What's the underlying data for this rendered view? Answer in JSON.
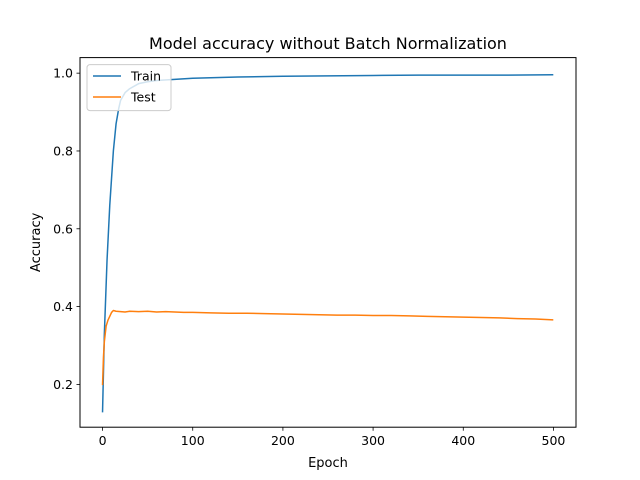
{
  "chart_data": {
    "type": "line",
    "title": "Model accuracy without Batch Normalization",
    "xlabel": "Epoch",
    "ylabel": "Accuracy",
    "xlim": [
      -25,
      525
    ],
    "ylim": [
      0.09,
      1.04
    ],
    "xticks": [
      0,
      100,
      200,
      300,
      400,
      500
    ],
    "yticks": [
      0.2,
      0.4,
      0.6,
      0.8,
      1.0
    ],
    "ytick_labels": [
      "0.2",
      "0.4",
      "0.6",
      "0.8",
      "1.0"
    ],
    "grid": false,
    "legend": {
      "position": "top-left"
    },
    "series": [
      {
        "name": "Train",
        "color": "#1f77b4",
        "points": [
          [
            0,
            0.13
          ],
          [
            2,
            0.33
          ],
          [
            5,
            0.52
          ],
          [
            8,
            0.66
          ],
          [
            10,
            0.73
          ],
          [
            12,
            0.8
          ],
          [
            15,
            0.87
          ],
          [
            18,
            0.91
          ],
          [
            20,
            0.93
          ],
          [
            25,
            0.95
          ],
          [
            30,
            0.96
          ],
          [
            40,
            0.973
          ],
          [
            50,
            0.978
          ],
          [
            60,
            0.981
          ],
          [
            80,
            0.984
          ],
          [
            100,
            0.987
          ],
          [
            150,
            0.99
          ],
          [
            200,
            0.992
          ],
          [
            250,
            0.993
          ],
          [
            300,
            0.994
          ],
          [
            350,
            0.995
          ],
          [
            400,
            0.995
          ],
          [
            450,
            0.995
          ],
          [
            499,
            0.996
          ]
        ]
      },
      {
        "name": "Test",
        "color": "#ff7f0e",
        "points": [
          [
            0,
            0.2
          ],
          [
            1,
            0.27
          ],
          [
            2,
            0.31
          ],
          [
            3,
            0.33
          ],
          [
            4,
            0.35
          ],
          [
            6,
            0.365
          ],
          [
            8,
            0.375
          ],
          [
            10,
            0.385
          ],
          [
            12,
            0.39
          ],
          [
            15,
            0.388
          ],
          [
            20,
            0.387
          ],
          [
            25,
            0.386
          ],
          [
            30,
            0.388
          ],
          [
            40,
            0.387
          ],
          [
            50,
            0.388
          ],
          [
            60,
            0.386
          ],
          [
            70,
            0.387
          ],
          [
            80,
            0.386
          ],
          [
            90,
            0.385
          ],
          [
            100,
            0.385
          ],
          [
            120,
            0.384
          ],
          [
            140,
            0.383
          ],
          [
            160,
            0.383
          ],
          [
            180,
            0.382
          ],
          [
            200,
            0.381
          ],
          [
            220,
            0.38
          ],
          [
            240,
            0.379
          ],
          [
            260,
            0.378
          ],
          [
            280,
            0.378
          ],
          [
            300,
            0.377
          ],
          [
            320,
            0.377
          ],
          [
            340,
            0.376
          ],
          [
            360,
            0.375
          ],
          [
            380,
            0.374
          ],
          [
            400,
            0.373
          ],
          [
            420,
            0.372
          ],
          [
            440,
            0.371
          ],
          [
            460,
            0.369
          ],
          [
            480,
            0.368
          ],
          [
            499,
            0.366
          ]
        ]
      }
    ]
  }
}
